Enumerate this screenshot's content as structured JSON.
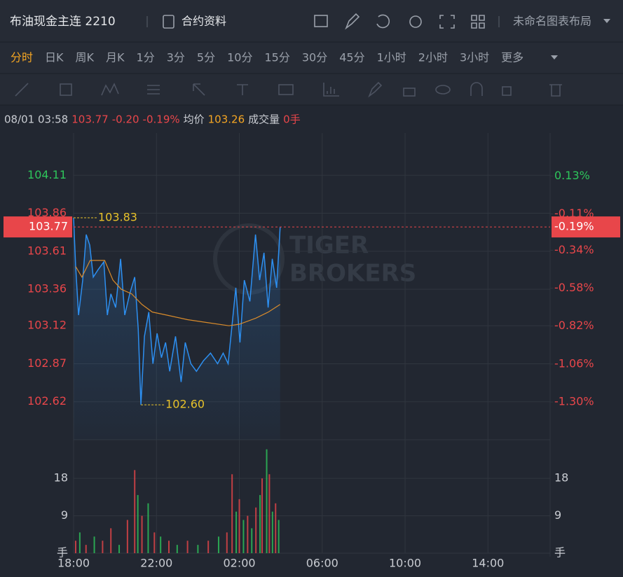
{
  "header": {
    "title": "布油现金主连 2210",
    "contract_info": "合约资料",
    "layout_name": "未命名图表布局"
  },
  "toolbar": {
    "timeframes": [
      "分时",
      "日K",
      "周K",
      "月K",
      "1分",
      "3分",
      "5分",
      "10分",
      "15分",
      "30分",
      "45分",
      "1小时",
      "2小时",
      "3小时",
      "更多"
    ],
    "selected": 0
  },
  "info": {
    "datetime": "08/01 03:58",
    "price": "103.77",
    "change": "-0.20",
    "change_pct": "-0.19%",
    "avg_label": "均价",
    "avg": "103.26",
    "volume_label": "成交量",
    "volume": "0手"
  },
  "watermark": [
    "TIGER",
    "BROKERS"
  ],
  "chart_data": {
    "type": "line",
    "up_color": "#2ec55b",
    "down_color": "#e8464a",
    "xlim": [
      0,
      23
    ],
    "xticks": [
      {
        "value": 0,
        "label": "18:00"
      },
      {
        "value": 4,
        "label": "22:00"
      },
      {
        "value": 8,
        "label": "02:00"
      },
      {
        "value": 12,
        "label": "06:00"
      },
      {
        "value": 16,
        "label": "10:00"
      },
      {
        "value": 20,
        "label": "14:00"
      }
    ],
    "ylim": [
      102.37,
      104.36
    ],
    "yticks": [
      104.11,
      103.86,
      103.61,
      103.36,
      103.12,
      102.87,
      102.62
    ],
    "y2lim": [
      -1.539,
      0.375
    ],
    "y2ticks": [
      {
        "value": 0.13,
        "label": "0.13%"
      },
      {
        "value": -0.11,
        "label": "-0.11%"
      },
      {
        "value": -0.34,
        "label": "-0.34%"
      },
      {
        "value": -0.58,
        "label": "-0.58%"
      },
      {
        "value": -0.82,
        "label": "-0.82%"
      },
      {
        "value": -1.06,
        "label": "-1.06%"
      },
      {
        "value": -1.3,
        "label": "-1.30%"
      }
    ],
    "last_price": 103.77,
    "last_pct": {
      "value": -0.19,
      "label": "-0.19%"
    },
    "series": [
      {
        "name": "价格",
        "color": "#2d8ff0",
        "x": [
          0,
          0.1,
          0.24,
          0.44,
          0.61,
          0.78,
          0.95,
          1.19,
          1.46,
          1.63,
          1.8,
          2.03,
          2.27,
          2.47,
          2.71,
          2.95,
          3.12,
          3.25,
          3.42,
          3.63,
          3.83,
          4.03,
          4.24,
          4.44,
          4.64,
          4.92,
          5.19,
          5.39,
          5.66,
          5.93,
          6.27,
          6.61,
          6.95,
          7.22,
          7.46,
          7.63,
          7.83,
          8.03,
          8.24,
          8.51,
          8.78,
          8.98,
          9.19,
          9.39,
          9.59,
          9.8,
          9.97
        ],
        "values": [
          103.83,
          103.51,
          103.19,
          103.42,
          103.72,
          103.65,
          103.44,
          103.49,
          103.54,
          103.19,
          103.33,
          103.24,
          103.56,
          103.19,
          103.33,
          103.44,
          103.1,
          102.6,
          103.05,
          103.21,
          102.87,
          103.07,
          102.91,
          103.01,
          102.82,
          103.05,
          102.75,
          103.01,
          102.87,
          102.82,
          102.89,
          102.94,
          102.87,
          102.94,
          102.87,
          103.1,
          103.37,
          103.01,
          103.42,
          103.28,
          103.72,
          103.42,
          103.6,
          103.24,
          103.56,
          103.37,
          103.77
        ]
      },
      {
        "name": "均价",
        "color": "#d98b2b",
        "x": [
          0.1,
          0.4,
          0.8,
          1.5,
          1.9,
          2.3,
          2.8,
          3.3,
          3.8,
          4.5,
          5.5,
          6.5,
          7.5,
          8.0,
          8.8,
          9.4,
          9.97
        ],
        "values": [
          103.51,
          103.44,
          103.55,
          103.55,
          103.42,
          103.36,
          103.33,
          103.26,
          103.21,
          103.19,
          103.16,
          103.14,
          103.12,
          103.13,
          103.17,
          103.21,
          103.26
        ]
      }
    ],
    "annotations": [
      {
        "x": 0,
        "value": 103.83,
        "label": "103.83"
      },
      {
        "x": 3.25,
        "value": 102.6,
        "label": "102.60"
      }
    ],
    "volume": {
      "vlim": [
        0,
        27.3
      ],
      "vticks": [
        9,
        18
      ],
      "unit": "手",
      "x": [
        0.1,
        0.3,
        0.6,
        1.0,
        1.4,
        1.8,
        2.2,
        2.6,
        2.95,
        3.1,
        3.3,
        3.6,
        3.9,
        4.2,
        4.6,
        5.0,
        5.5,
        6.0,
        6.5,
        7.0,
        7.4,
        7.65,
        7.85,
        8.0,
        8.2,
        8.4,
        8.6,
        8.8,
        9.0,
        9.1,
        9.32,
        9.45,
        9.6,
        9.75,
        9.9
      ],
      "values": [
        3,
        5,
        2,
        4,
        3,
        6,
        2,
        8,
        20,
        14,
        9,
        12,
        5,
        4,
        3,
        2,
        3,
        2,
        3,
        4,
        5,
        19,
        10,
        13,
        8,
        9,
        6,
        11,
        14,
        18,
        25,
        19,
        10,
        12,
        8
      ],
      "colors": [
        "#e8464a",
        "#2ec55b",
        "#e8464a",
        "#2ec55b",
        "#e8464a",
        "#e8464a",
        "#2ec55b",
        "#e8464a",
        "#e8464a",
        "#2ec55b",
        "#e8464a",
        "#2ec55b",
        "#e8464a",
        "#2ec55b",
        "#e8464a",
        "#2ec55b",
        "#e8464a",
        "#2ec55b",
        "#e8464a",
        "#2ec55b",
        "#e8464a",
        "#e8464a",
        "#2ec55b",
        "#e8464a",
        "#2ec55b",
        "#e8464a",
        "#2ec55b",
        "#e8464a",
        "#2ec55b",
        "#e8464a",
        "#2ec55b",
        "#e8464a",
        "#2ec55b",
        "#e8464a",
        "#2ec55b"
      ]
    }
  }
}
